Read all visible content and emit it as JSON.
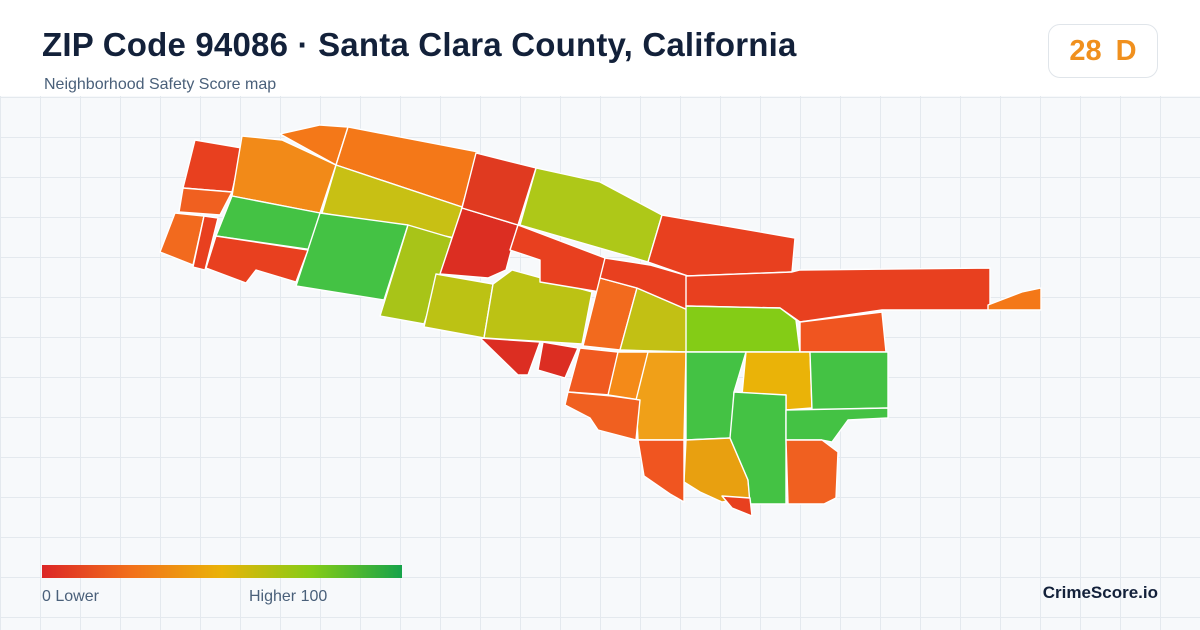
{
  "header": {
    "title": "ZIP Code 94086 · Santa Clara County, California",
    "subtitle": "Neighborhood Safety Score map"
  },
  "score": {
    "value": "28",
    "grade": "D",
    "color": "#f0901e"
  },
  "legend": {
    "min_label": "0  Lower",
    "max_label": "Higher  100",
    "colors": [
      "#dc2626",
      "#f2711b",
      "#eab308",
      "#84cc16",
      "#16a34a"
    ]
  },
  "brand": "CrimeScore.io",
  "map": {
    "regions": [
      {
        "id": "r1",
        "color": "#e8401f"
      },
      {
        "id": "r2",
        "color": "#f06020"
      },
      {
        "id": "r3",
        "color": "#f26a1e"
      },
      {
        "id": "r4",
        "color": "#e8401f"
      },
      {
        "id": "r5",
        "color": "#f28a18"
      },
      {
        "id": "r6",
        "color": "#f47818"
      },
      {
        "id": "r7",
        "color": "#f47818"
      },
      {
        "id": "r8",
        "color": "#c8c014"
      },
      {
        "id": "r9",
        "color": "#44c244"
      },
      {
        "id": "r10",
        "color": "#44c244"
      },
      {
        "id": "r11",
        "color": "#a8c418"
      },
      {
        "id": "r12",
        "color": "#e8401f"
      },
      {
        "id": "r13",
        "color": "#dc2e22"
      },
      {
        "id": "r14",
        "color": "#aec818"
      },
      {
        "id": "r15",
        "color": "#e03a20"
      },
      {
        "id": "r16",
        "color": "#bcc214"
      },
      {
        "id": "r17",
        "color": "#bcc214"
      },
      {
        "id": "r18",
        "color": "#e8401f"
      },
      {
        "id": "r19",
        "color": "#e8401f"
      },
      {
        "id": "r20",
        "color": "#f26a1e"
      },
      {
        "id": "r21",
        "color": "#c2c014"
      },
      {
        "id": "r22",
        "color": "#dc2e22"
      },
      {
        "id": "r23",
        "color": "#dc2e22"
      },
      {
        "id": "r24",
        "color": "#e8401f"
      },
      {
        "id": "r25",
        "color": "#e8401f"
      },
      {
        "id": "r26",
        "color": "#f47818"
      },
      {
        "id": "r27",
        "color": "#84cc16"
      },
      {
        "id": "r28",
        "color": "#f05520"
      },
      {
        "id": "r29",
        "color": "#f05a20"
      },
      {
        "id": "r30",
        "color": "#f48a18"
      },
      {
        "id": "r31",
        "color": "#f0a018"
      },
      {
        "id": "r32",
        "color": "#44c244"
      },
      {
        "id": "r33",
        "color": "#eab308"
      },
      {
        "id": "r34",
        "color": "#44c244"
      },
      {
        "id": "r35",
        "color": "#f06020"
      },
      {
        "id": "r36",
        "color": "#e8a010"
      },
      {
        "id": "r37",
        "color": "#44c244"
      },
      {
        "id": "r38",
        "color": "#44c244"
      },
      {
        "id": "r39",
        "color": "#f06020"
      },
      {
        "id": "r40",
        "color": "#f05520"
      },
      {
        "id": "r41",
        "color": "#e8401f"
      }
    ]
  }
}
